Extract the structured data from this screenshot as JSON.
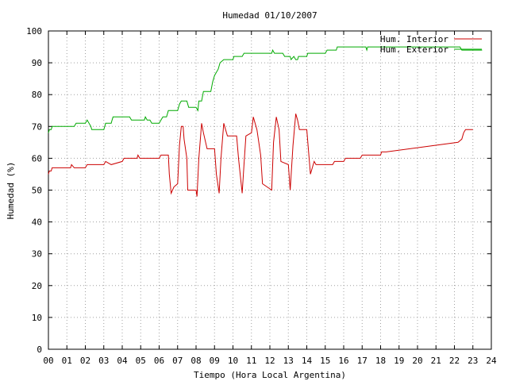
{
  "chart_data": {
    "type": "line",
    "title": "Humedad 01/10/2007",
    "xlabel": "Tiempo (Hora Local Argentina)",
    "ylabel": "Humedad (%)",
    "xlim": [
      0,
      24
    ],
    "ylim": [
      0,
      100
    ],
    "grid": true,
    "legend_position": "top-right",
    "x_ticks": [
      "00",
      "01",
      "02",
      "03",
      "04",
      "05",
      "06",
      "07",
      "08",
      "09",
      "10",
      "11",
      "12",
      "13",
      "14",
      "15",
      "16",
      "17",
      "18",
      "19",
      "20",
      "21",
      "22",
      "23",
      "24"
    ],
    "y_ticks": [
      "0",
      "10",
      "20",
      "30",
      "40",
      "50",
      "60",
      "70",
      "80",
      "90",
      "100"
    ],
    "series": [
      {
        "name": "Hum. Interior",
        "color": "#cc0000",
        "points": [
          [
            0.0,
            55
          ],
          [
            0.05,
            56
          ],
          [
            0.15,
            56
          ],
          [
            0.2,
            57
          ],
          [
            0.4,
            57
          ],
          [
            1.2,
            57
          ],
          [
            1.25,
            58
          ],
          [
            1.4,
            57
          ],
          [
            2.0,
            57
          ],
          [
            2.1,
            58
          ],
          [
            2.3,
            58
          ],
          [
            3.0,
            58
          ],
          [
            3.1,
            59
          ],
          [
            3.4,
            58
          ],
          [
            4.0,
            59
          ],
          [
            4.1,
            60
          ],
          [
            4.4,
            60
          ],
          [
            4.8,
            60
          ],
          [
            4.85,
            61
          ],
          [
            4.95,
            60
          ],
          [
            5.3,
            60
          ],
          [
            6.0,
            60
          ],
          [
            6.1,
            61
          ],
          [
            6.5,
            61
          ],
          [
            6.55,
            55
          ],
          [
            6.65,
            49
          ],
          [
            6.8,
            51
          ],
          [
            7.0,
            52
          ],
          [
            7.1,
            64
          ],
          [
            7.2,
            70
          ],
          [
            7.3,
            70
          ],
          [
            7.35,
            66
          ],
          [
            7.5,
            60
          ],
          [
            7.55,
            50
          ],
          [
            8.0,
            50
          ],
          [
            8.05,
            48
          ],
          [
            8.15,
            60
          ],
          [
            8.3,
            71
          ],
          [
            8.4,
            68
          ],
          [
            8.6,
            63
          ],
          [
            9.0,
            63
          ],
          [
            9.1,
            55
          ],
          [
            9.25,
            49
          ],
          [
            9.35,
            60
          ],
          [
            9.5,
            71
          ],
          [
            9.7,
            67
          ],
          [
            10.2,
            67
          ],
          [
            10.3,
            60
          ],
          [
            10.5,
            49
          ],
          [
            10.6,
            58
          ],
          [
            10.7,
            67
          ],
          [
            11.0,
            68
          ],
          [
            11.1,
            73
          ],
          [
            11.3,
            69
          ],
          [
            11.5,
            61
          ],
          [
            11.6,
            52
          ],
          [
            12.1,
            50
          ],
          [
            12.2,
            65
          ],
          [
            12.35,
            73
          ],
          [
            12.5,
            69
          ],
          [
            12.6,
            59
          ],
          [
            13.0,
            58
          ],
          [
            13.1,
            50
          ],
          [
            13.25,
            64
          ],
          [
            13.4,
            74
          ],
          [
            13.5,
            72
          ],
          [
            13.6,
            69
          ],
          [
            14.0,
            69
          ],
          [
            14.1,
            62
          ],
          [
            14.2,
            55
          ],
          [
            14.35,
            58
          ],
          [
            14.4,
            59
          ],
          [
            14.5,
            58
          ],
          [
            15.4,
            58
          ],
          [
            15.5,
            59
          ],
          [
            16.0,
            59
          ],
          [
            16.1,
            60
          ],
          [
            16.9,
            60
          ],
          [
            17.0,
            61
          ],
          [
            18.0,
            61
          ],
          [
            18.05,
            62
          ],
          [
            18.3,
            62
          ],
          [
            22.2,
            65
          ],
          [
            22.4,
            66
          ],
          [
            22.5,
            68
          ],
          [
            22.6,
            69
          ],
          [
            23.0,
            69
          ]
        ]
      },
      {
        "name": "Hum. Exterior",
        "color": "#00aa00",
        "points": [
          [
            0.0,
            68
          ],
          [
            0.05,
            69
          ],
          [
            0.15,
            69
          ],
          [
            0.2,
            70
          ],
          [
            1.4,
            70
          ],
          [
            1.5,
            71
          ],
          [
            2.0,
            71
          ],
          [
            2.1,
            72
          ],
          [
            2.3,
            70
          ],
          [
            2.35,
            69
          ],
          [
            3.0,
            69
          ],
          [
            3.1,
            71
          ],
          [
            3.4,
            71
          ],
          [
            3.45,
            72
          ],
          [
            3.5,
            73
          ],
          [
            4.4,
            73
          ],
          [
            4.5,
            72
          ],
          [
            5.2,
            72
          ],
          [
            5.25,
            73
          ],
          [
            5.35,
            72
          ],
          [
            5.5,
            72
          ],
          [
            5.6,
            71
          ],
          [
            6.0,
            71
          ],
          [
            6.1,
            72
          ],
          [
            6.2,
            73
          ],
          [
            6.4,
            73
          ],
          [
            6.5,
            75
          ],
          [
            7.0,
            75
          ],
          [
            7.1,
            77
          ],
          [
            7.2,
            78
          ],
          [
            7.5,
            78
          ],
          [
            7.6,
            76
          ],
          [
            8.0,
            76
          ],
          [
            8.1,
            75
          ],
          [
            8.15,
            78
          ],
          [
            8.3,
            78
          ],
          [
            8.4,
            81
          ],
          [
            8.8,
            81
          ],
          [
            8.9,
            84
          ],
          [
            9.0,
            86
          ],
          [
            9.2,
            88
          ],
          [
            9.3,
            90
          ],
          [
            9.5,
            91
          ],
          [
            10.0,
            91
          ],
          [
            10.05,
            92
          ],
          [
            10.5,
            92
          ],
          [
            10.6,
            93
          ],
          [
            12.1,
            93
          ],
          [
            12.15,
            94
          ],
          [
            12.25,
            93
          ],
          [
            12.7,
            93
          ],
          [
            12.8,
            92
          ],
          [
            13.1,
            92
          ],
          [
            13.15,
            91
          ],
          [
            13.3,
            92
          ],
          [
            13.4,
            91
          ],
          [
            13.5,
            91
          ],
          [
            13.55,
            92
          ],
          [
            14.0,
            92
          ],
          [
            14.05,
            93
          ],
          [
            15.0,
            93
          ],
          [
            15.1,
            94
          ],
          [
            15.6,
            94
          ],
          [
            15.65,
            95
          ],
          [
            17.2,
            95
          ],
          [
            17.25,
            94
          ],
          [
            17.3,
            95
          ],
          [
            22.3,
            95
          ],
          [
            22.4,
            94
          ],
          [
            23.5,
            94
          ]
        ]
      }
    ]
  }
}
